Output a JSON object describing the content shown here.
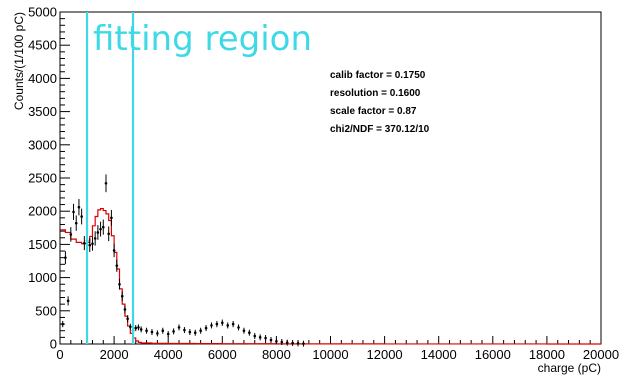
{
  "chart_data": {
    "type": "scatter",
    "title": "",
    "xlabel": "charge (pC)",
    "ylabel": "Counts/(1/100 pC)",
    "xlim": [
      0,
      20000
    ],
    "ylim": [
      0,
      5000
    ],
    "xticks": [
      0,
      2000,
      4000,
      6000,
      8000,
      10000,
      12000,
      14000,
      16000,
      18000,
      20000
    ],
    "yticks": [
      0,
      500,
      1000,
      1500,
      2000,
      2500,
      3000,
      3500,
      4000,
      4500,
      5000
    ],
    "annotation": "fitting region",
    "fit_lines_x": [
      1000,
      2700
    ],
    "stats": [
      "calib factor = 0.1750",
      "resolution = 0.1600",
      "scale factor = 0.87",
      "chi2/NDF = 370.12/10"
    ],
    "colors": {
      "data": "#000000",
      "fit": "#dd0000",
      "region": "#3fd9e6"
    },
    "series": [
      {
        "type": "points",
        "x": [
          100,
          200,
          300,
          400,
          500,
          600,
          700,
          800,
          900,
          1000,
          1100,
          1200,
          1300,
          1400,
          1500,
          1600,
          1700,
          1800,
          1900,
          2000,
          2100,
          2200,
          2300,
          2400,
          2500,
          2600,
          2700,
          2800,
          2900,
          3000,
          3200,
          3400,
          3600,
          3800,
          4000,
          4200,
          4400,
          4600,
          4800,
          5000,
          5200,
          5400,
          5600,
          5800,
          6000,
          6200,
          6400,
          6600,
          6800,
          7000,
          7200,
          7400,
          7600,
          7800,
          8000,
          8200,
          8400,
          8600,
          8800,
          9000
        ],
        "y": [
          300,
          1300,
          650,
          1650,
          1990,
          1820,
          2060,
          1920,
          1520,
          1560,
          1490,
          1510,
          1590,
          1680,
          1730,
          1760,
          2420,
          1660,
          1900,
          1410,
          1180,
          900,
          720,
          520,
          380,
          260,
          200,
          240,
          250,
          220,
          200,
          180,
          160,
          200,
          150,
          190,
          250,
          210,
          180,
          170,
          200,
          240,
          280,
          300,
          320,
          280,
          300,
          250,
          200,
          170,
          120,
          100,
          90,
          60,
          40,
          30,
          20,
          15,
          10,
          5
        ]
      },
      {
        "type": "step",
        "x": [
          0,
          200,
          400,
          600,
          800,
          1000,
          1100,
          1200,
          1300,
          1400,
          1500,
          1600,
          1700,
          1800,
          1900,
          2000,
          2100,
          2200,
          2300,
          2400,
          2500,
          2600,
          2700,
          2800,
          2900,
          3000,
          3400,
          4000,
          5000,
          6000,
          7000,
          8000,
          9000,
          10000,
          12000,
          14000,
          16000,
          18000,
          19600
        ],
        "y": [
          1720,
          1680,
          1580,
          1530,
          1510,
          1530,
          1620,
          1780,
          1920,
          2020,
          2040,
          2010,
          1960,
          1860,
          1630,
          1380,
          1130,
          830,
          600,
          420,
          270,
          160,
          90,
          45,
          25,
          15,
          10,
          8,
          6,
          5,
          4,
          3,
          2,
          2,
          1,
          1,
          1,
          0,
          0
        ]
      }
    ]
  }
}
